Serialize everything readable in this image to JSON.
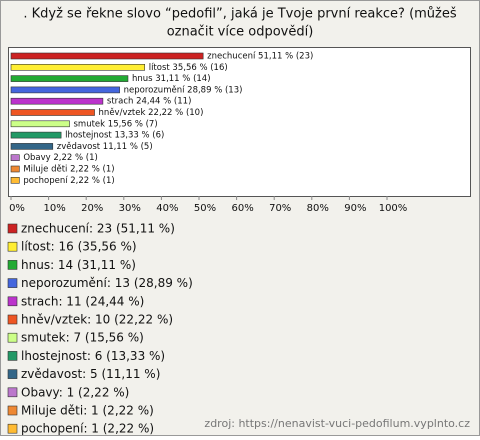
{
  "chart_data": {
    "type": "bar",
    "title": ". Když se řekne slovo “pedofil”, jaká je Tvoje první reakce? (můžeš",
    "subtitle": "označit více odpovědí)",
    "categories": [
      "znechucení",
      "lítost",
      "hnus",
      "neporozumění",
      "strach",
      "hněv/vztek",
      "smutek",
      "lhostejnost",
      "zvědavost",
      "Obavy",
      "Miluje děti",
      "pochopení"
    ],
    "values": [
      51.11,
      35.56,
      31.11,
      28.89,
      24.44,
      22.22,
      15.56,
      13.33,
      11.11,
      2.22,
      2.22,
      2.22
    ],
    "value_labels": [
      "znechucení 51,11 % (23)",
      "lítost 35,56 % (16)",
      "hnus 31,11 % (14)",
      "neporozumění 28,89 % (13)",
      "strach 24,44 % (11)",
      "hněv/vztek 22,22 % (10)",
      "smutek 15,56 % (7)",
      "lhostejnost 13,33 % (6)",
      "zvědavost 11,11 % (5)",
      "Obavy 2,22 % (1)",
      "Miluje děti 2,22 % (1)",
      "pochopení 2,22 % (1)"
    ],
    "legend_labels": [
      "znechucení: 23 (51,11 %)",
      "lítost: 16 (35,56 %)",
      "hnus: 14 (31,11 %)",
      "neporozumění: 13 (28,89 %)",
      "strach: 11 (24,44 %)",
      "hněv/vztek: 10 (22,22 %)",
      "smutek: 7 (15,56 %)",
      "lhostejnost: 6 (13,33 %)",
      "zvědavost: 5 (11,11 %)",
      "Obavy: 1 (2,22 %)",
      "Miluje děti: 1 (2,22 %)",
      "pochopení: 1 (2,22 %)"
    ],
    "colors": [
      "#cc2222",
      "#ffee33",
      "#22aa33",
      "#4466dd",
      "#bb33cc",
      "#ee5522",
      "#ccff88",
      "#229966",
      "#336688",
      "#bb77cc",
      "#ee8833",
      "#ffbb33"
    ],
    "xlim": [
      0,
      100
    ],
    "xticks": [
      {
        "value": 0,
        "label": "0%"
      },
      {
        "value": 10,
        "label": "10%"
      },
      {
        "value": 20,
        "label": "20%"
      },
      {
        "value": 30,
        "label": "30%"
      },
      {
        "value": 40,
        "label": "40%"
      },
      {
        "value": 50,
        "label": "50%"
      },
      {
        "value": 60,
        "label": "60%"
      },
      {
        "value": 70,
        "label": "70%"
      },
      {
        "value": 80,
        "label": "80%"
      },
      {
        "value": 90,
        "label": "90%"
      },
      {
        "value": 100,
        "label": "100%"
      }
    ],
    "source": "zdroj: https://nenavist-vuci-pedofilum.vyplnto.cz"
  }
}
